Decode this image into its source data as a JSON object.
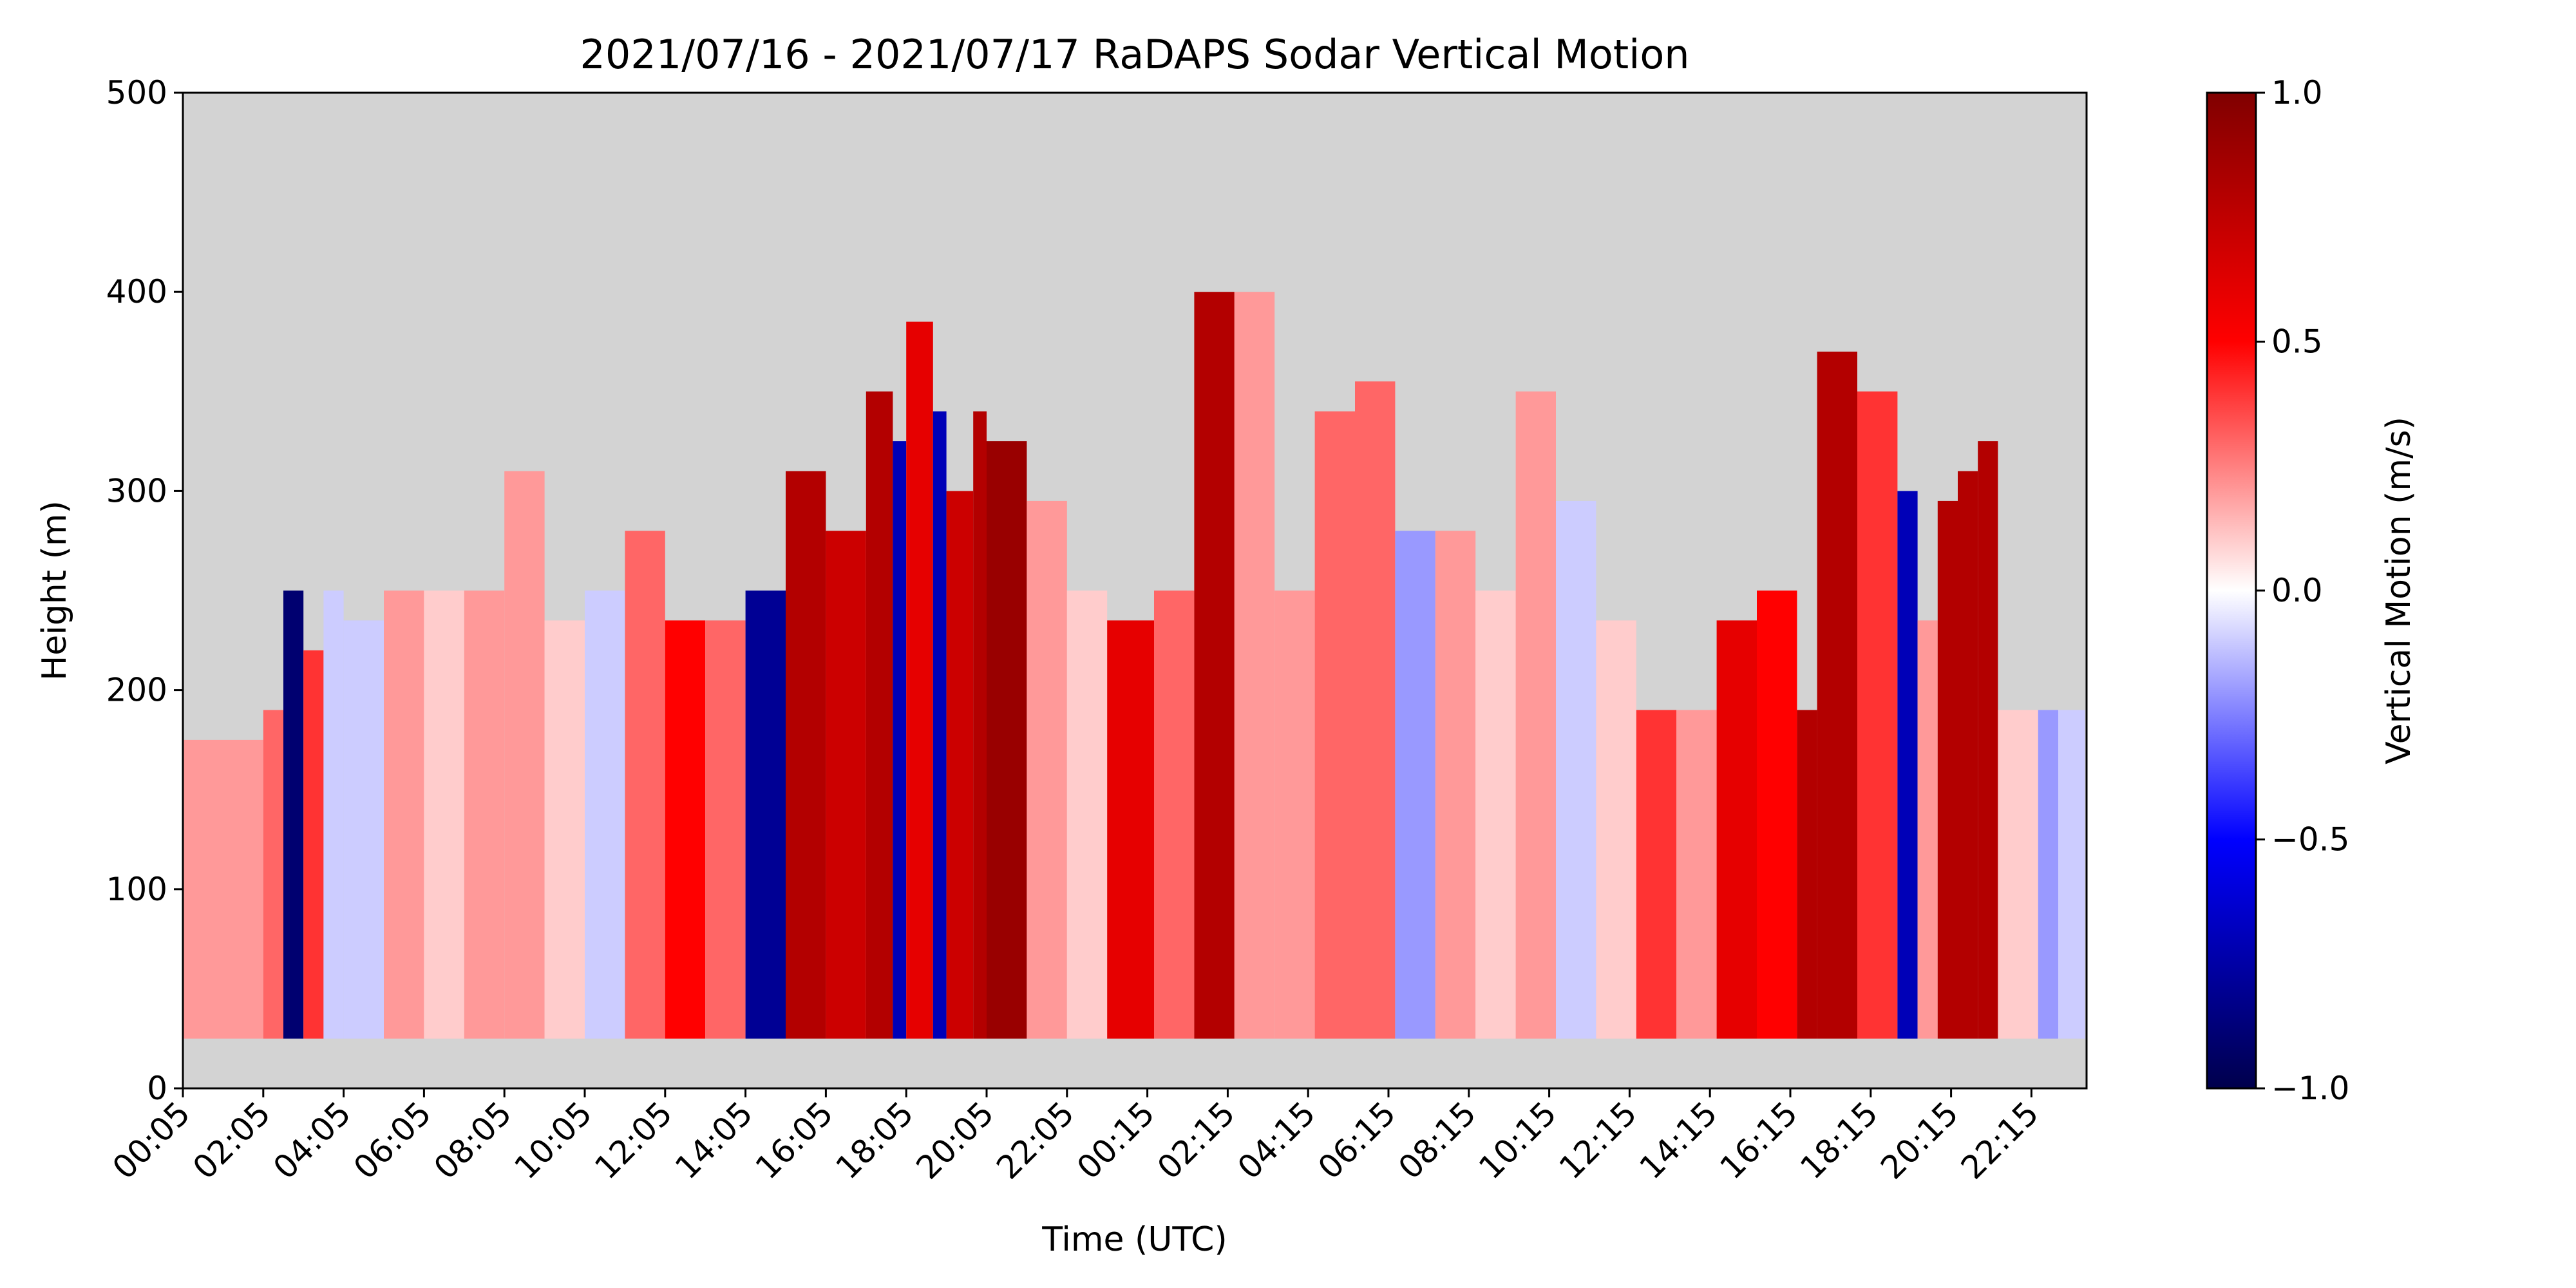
{
  "chart_data": {
    "type": "heatmap",
    "title": "2021/07/16 - 2021/07/17 RaDAPS Sodar Vertical Motion",
    "xlabel": "Time (UTC)",
    "ylabel": "Height (m)",
    "ylim": [
      0,
      500
    ],
    "y_ticks": [
      "0",
      "100",
      "200",
      "300",
      "400",
      "500"
    ],
    "x_ticks": [
      "00:05",
      "02:05",
      "04:05",
      "06:05",
      "08:05",
      "10:05",
      "12:05",
      "14:05",
      "16:05",
      "18:05",
      "20:05",
      "22:05",
      "00:15",
      "02:15",
      "04:15",
      "06:15",
      "08:15",
      "10:15",
      "12:15",
      "14:15",
      "16:15",
      "18:15",
      "20:15",
      "22:15"
    ],
    "x_start": "2021-07-16 00:05",
    "x_end": "2021-07-17 23:25",
    "tick_hours_apart": 2,
    "background_color": "#d3d3d3",
    "data_min_height_m": 25,
    "grid": false,
    "colorbar": {
      "label": "Vertical Motion (m/s)",
      "range": [
        -1.0,
        1.0
      ],
      "ticks": [
        "1.0",
        "0.5",
        "0.0",
        "−0.5",
        "−1.0"
      ],
      "colormap": "seismic",
      "colors": [
        "#00004c",
        "#0000ff",
        "#ffffff",
        "#ff0000",
        "#800000"
      ]
    },
    "columns": [
      {
        "t": "00:05",
        "top": 175,
        "w": 0.2
      },
      {
        "t": "02:05",
        "top": 190,
        "w": 0.3
      },
      {
        "t": "02:35",
        "top": 250,
        "w": -0.9
      },
      {
        "t": "03:05",
        "top": 220,
        "w": 0.4
      },
      {
        "t": "03:35",
        "top": 250,
        "w": -0.1
      },
      {
        "t": "04:05",
        "top": 235,
        "w": -0.1
      },
      {
        "t": "05:05",
        "top": 250,
        "w": 0.2
      },
      {
        "t": "06:05",
        "top": 250,
        "w": 0.1
      },
      {
        "t": "07:05",
        "top": 250,
        "w": 0.2
      },
      {
        "t": "08:05",
        "top": 310,
        "w": 0.2
      },
      {
        "t": "09:05",
        "top": 235,
        "w": 0.1
      },
      {
        "t": "10:05",
        "top": 250,
        "w": -0.1
      },
      {
        "t": "11:05",
        "top": 280,
        "w": 0.3
      },
      {
        "t": "12:05",
        "top": 235,
        "w": 0.5
      },
      {
        "t": "13:05",
        "top": 235,
        "w": 0.3
      },
      {
        "t": "14:05",
        "top": 250,
        "w": -0.8
      },
      {
        "t": "15:05",
        "top": 310,
        "w": 0.8
      },
      {
        "t": "16:05",
        "top": 280,
        "w": 0.7
      },
      {
        "t": "17:05",
        "top": 350,
        "w": 0.8
      },
      {
        "t": "17:45",
        "top": 325,
        "w": -0.7
      },
      {
        "t": "18:05",
        "top": 385,
        "w": 0.6
      },
      {
        "t": "18:45",
        "top": 340,
        "w": -0.7
      },
      {
        "t": "19:05",
        "top": 300,
        "w": 0.7
      },
      {
        "t": "19:45",
        "top": 340,
        "w": 0.8
      },
      {
        "t": "20:05",
        "top": 325,
        "w": 0.9
      },
      {
        "t": "21:05",
        "top": 295,
        "w": 0.2
      },
      {
        "t": "22:05",
        "top": 250,
        "w": 0.1
      },
      {
        "t": "23:05",
        "top": 235,
        "w": 0.6
      },
      {
        "t": "00:15",
        "top": 250,
        "w": 0.3
      },
      {
        "t": "01:15",
        "top": 400,
        "w": 0.8
      },
      {
        "t": "02:15",
        "top": 400,
        "w": 0.2
      },
      {
        "t": "03:15",
        "top": 250,
        "w": 0.2
      },
      {
        "t": "04:15",
        "top": 340,
        "w": 0.3
      },
      {
        "t": "05:15",
        "top": 355,
        "w": 0.3
      },
      {
        "t": "06:15",
        "top": 280,
        "w": -0.2
      },
      {
        "t": "07:15",
        "top": 280,
        "w": 0.2
      },
      {
        "t": "08:15",
        "top": 250,
        "w": 0.1
      },
      {
        "t": "09:15",
        "top": 350,
        "w": 0.2
      },
      {
        "t": "10:15",
        "top": 295,
        "w": -0.1
      },
      {
        "t": "11:15",
        "top": 235,
        "w": 0.1
      },
      {
        "t": "12:15",
        "top": 190,
        "w": 0.4
      },
      {
        "t": "13:15",
        "top": 190,
        "w": 0.2
      },
      {
        "t": "14:15",
        "top": 235,
        "w": 0.6
      },
      {
        "t": "15:15",
        "top": 250,
        "w": 0.5
      },
      {
        "t": "16:15",
        "top": 190,
        "w": 0.8
      },
      {
        "t": "16:45",
        "top": 370,
        "w": 0.8
      },
      {
        "t": "17:45",
        "top": 350,
        "w": 0.4
      },
      {
        "t": "18:45",
        "top": 300,
        "w": -0.7
      },
      {
        "t": "19:15",
        "top": 235,
        "w": 0.2
      },
      {
        "t": "19:45",
        "top": 295,
        "w": 0.8
      },
      {
        "t": "20:15",
        "top": 310,
        "w": 0.8
      },
      {
        "t": "20:45",
        "top": 325,
        "w": 0.8
      },
      {
        "t": "21:15",
        "top": 190,
        "w": 0.1
      },
      {
        "t": "22:15",
        "top": 190,
        "w": -0.2
      },
      {
        "t": "22:45",
        "top": 190,
        "w": -0.1
      }
    ]
  }
}
